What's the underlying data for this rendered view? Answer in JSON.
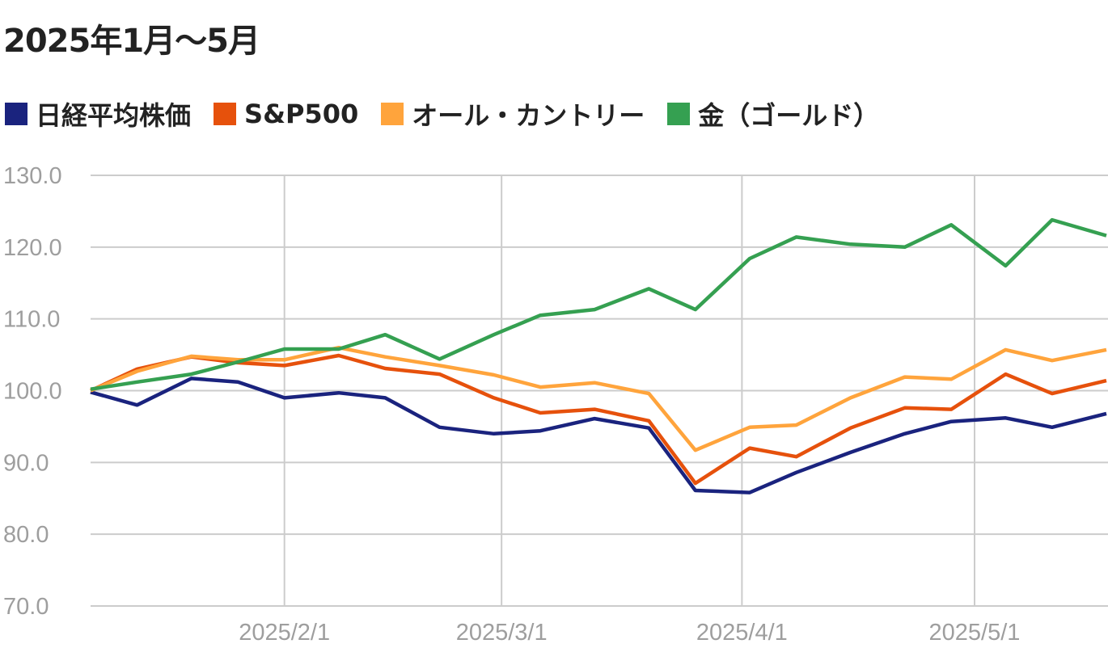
{
  "chart_data": {
    "type": "line",
    "title": "2025年1月〜5月",
    "xlabel": "",
    "ylabel": "",
    "ylim": [
      70,
      130
    ],
    "yticks": [
      "70.0",
      "80.0",
      "90.0",
      "100.0",
      "110.0",
      "120.0",
      "130.0"
    ],
    "xticks": [
      "2025/2/1",
      "2025/3/1",
      "2025/4/1",
      "2025/5/1"
    ],
    "xlim": [
      "2025-01-07",
      "2025-05-18"
    ],
    "grid": true,
    "legend_position": "top-left",
    "x": [
      "2025-01-07",
      "2025-01-13",
      "2025-01-20",
      "2025-01-26",
      "2025-02-01",
      "2025-02-08",
      "2025-02-14",
      "2025-02-21",
      "2025-02-28",
      "2025-03-06",
      "2025-03-13",
      "2025-03-20",
      "2025-03-26",
      "2025-04-02",
      "2025-04-08",
      "2025-04-15",
      "2025-04-22",
      "2025-04-28",
      "2025-05-05",
      "2025-05-11",
      "2025-05-18"
    ],
    "series": [
      {
        "name": "日経平均株価",
        "color": "#1a237e",
        "values": [
          99.8,
          98.0,
          101.7,
          101.2,
          99.0,
          99.7,
          99.0,
          94.9,
          94.0,
          94.4,
          96.1,
          94.8,
          86.1,
          85.8,
          88.6,
          91.4,
          94.0,
          95.7,
          96.2,
          94.9,
          96.8
        ]
      },
      {
        "name": "S&P500",
        "color": "#e6510c",
        "values": [
          100.0,
          103.0,
          104.7,
          103.9,
          103.5,
          104.9,
          103.1,
          102.3,
          99.0,
          96.9,
          97.4,
          95.8,
          87.1,
          92.0,
          90.8,
          94.8,
          97.6,
          97.4,
          102.3,
          99.6,
          101.4
        ]
      },
      {
        "name": "オール・カントリー",
        "color": "#ffa43c",
        "values": [
          100.0,
          102.7,
          104.8,
          104.3,
          104.3,
          106.0,
          104.7,
          103.5,
          102.2,
          100.5,
          101.1,
          99.6,
          91.7,
          94.9,
          95.2,
          99.0,
          101.9,
          101.6,
          105.7,
          104.2,
          105.7
        ]
      },
      {
        "name": "金（ゴールド）",
        "color": "#35a051",
        "values": [
          100.2,
          101.2,
          102.3,
          104.0,
          105.8,
          105.8,
          107.8,
          104.4,
          107.8,
          110.5,
          111.3,
          114.2,
          111.3,
          118.4,
          121.4,
          120.4,
          120.0,
          123.1,
          117.4,
          123.8,
          121.6
        ]
      }
    ]
  }
}
